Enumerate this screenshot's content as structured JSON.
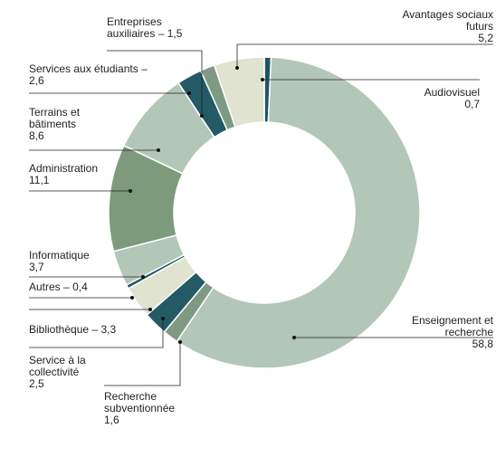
{
  "chart_data": {
    "type": "donut",
    "categories": [
      "Audiovisuel",
      "Enseignement et recherche",
      "Recherche subventionnée",
      "Service à la collectivité",
      "Bibliothèque",
      "Autres",
      "Informatique",
      "Administration",
      "Terrains et bâtiments",
      "Services aux étudiants",
      "Entreprises auxiliaires",
      "Avantages sociaux futurs"
    ],
    "values": [
      0.7,
      58.8,
      1.6,
      2.5,
      3.3,
      0.4,
      3.7,
      11.1,
      8.6,
      2.6,
      1.5,
      5.2
    ],
    "value_labels": [
      "0,7",
      "58,8",
      "1,6",
      "2,5",
      "3,3",
      "0,4",
      "3,7",
      "11,1",
      "8,6",
      "2,6",
      "1,5",
      "5,2"
    ],
    "label_separator": "–",
    "colors": [
      "#1f5566",
      "#b3c7b8",
      "#7f9a82",
      "#245a66",
      "#dfe3cf",
      "#1f5566",
      "#b3c7b8",
      "#7e9a7d",
      "#b3c7b8",
      "#245a66",
      "#7f9a82",
      "#dfe3cf"
    ]
  }
}
